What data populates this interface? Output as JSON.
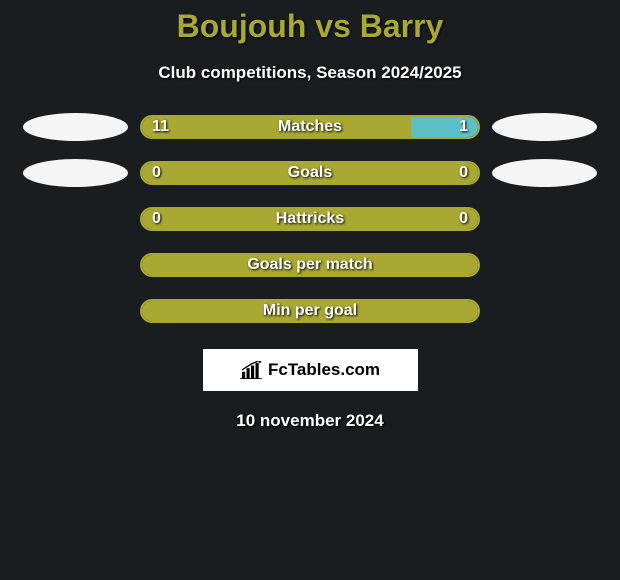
{
  "title": "Boujouh vs Barry",
  "subtitle": "Club competitions, Season 2024/2025",
  "colors": {
    "background": "#1a1d1f",
    "title": "#a8a832",
    "text": "#ffffff",
    "bar_primary": "#a8a832",
    "bar_secondary": "#5dc0c7",
    "ellipse": "#f5f5f5"
  },
  "stats": [
    {
      "label": "Matches",
      "left_value": "11",
      "right_value": "1",
      "left_pct": 80,
      "right_pct": 20,
      "left_color": "#a8a832",
      "right_color": "#5dc0c7",
      "show_left_ellipse": true,
      "show_right_ellipse": true,
      "show_values": true
    },
    {
      "label": "Goals",
      "left_value": "0",
      "right_value": "0",
      "left_pct": 50,
      "right_pct": 50,
      "left_color": "#a8a832",
      "right_color": "#a8a832",
      "show_left_ellipse": true,
      "show_right_ellipse": true,
      "show_values": true
    },
    {
      "label": "Hattricks",
      "left_value": "0",
      "right_value": "0",
      "left_pct": 50,
      "right_pct": 50,
      "left_color": "#a8a832",
      "right_color": "#a8a832",
      "show_left_ellipse": false,
      "show_right_ellipse": false,
      "show_values": true
    },
    {
      "label": "Goals per match",
      "left_value": "",
      "right_value": "",
      "left_pct": 100,
      "right_pct": 0,
      "left_color": "#a8a832",
      "right_color": "#a8a832",
      "show_left_ellipse": false,
      "show_right_ellipse": false,
      "show_values": false
    },
    {
      "label": "Min per goal",
      "left_value": "",
      "right_value": "",
      "left_pct": 100,
      "right_pct": 0,
      "left_color": "#a8a832",
      "right_color": "#a8a832",
      "show_left_ellipse": false,
      "show_right_ellipse": false,
      "show_values": false
    }
  ],
  "logo_text": "FcTables.com",
  "date": "10 november 2024"
}
